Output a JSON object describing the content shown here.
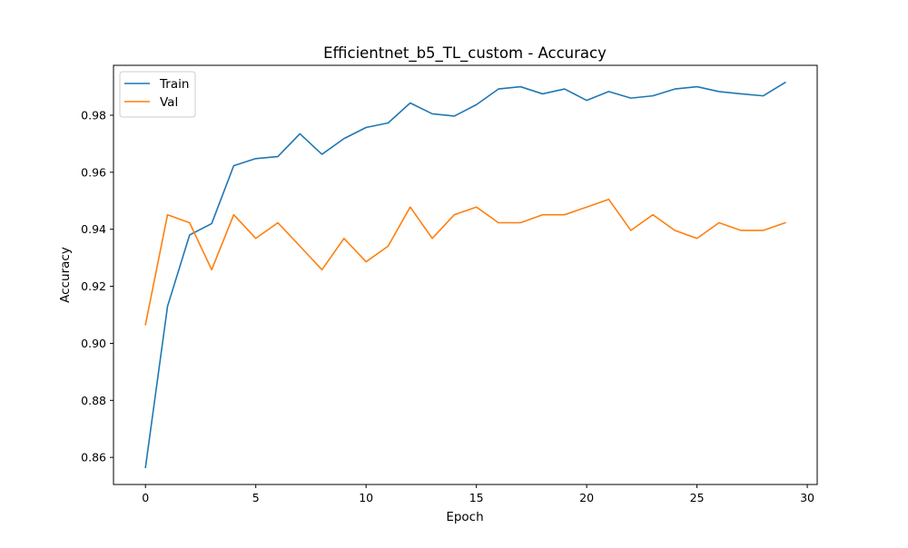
{
  "chart_data": {
    "type": "line",
    "title": "Efficientnet_b5_TL_custom - Accuracy",
    "xlabel": "Epoch",
    "ylabel": "Accuracy",
    "xlim": [
      -1.45,
      30.45
    ],
    "ylim": [
      0.8505,
      0.9975
    ],
    "xticks": [
      0,
      5,
      10,
      15,
      20,
      25,
      30
    ],
    "yticks": [
      0.86,
      0.88,
      0.9,
      0.92,
      0.94,
      0.96,
      0.98
    ],
    "ytick_labels": [
      "0.86",
      "0.88",
      "0.90",
      "0.92",
      "0.94",
      "0.96",
      "0.98"
    ],
    "grid": false,
    "legend_position": "upper-left",
    "x": [
      0,
      1,
      2,
      3,
      4,
      5,
      6,
      7,
      8,
      9,
      10,
      11,
      12,
      13,
      14,
      15,
      16,
      17,
      18,
      19,
      20,
      21,
      22,
      23,
      24,
      25,
      26,
      27,
      28,
      29
    ],
    "series": [
      {
        "name": "Train",
        "color": "#1f77b4",
        "values": [
          0.8565,
          0.913,
          0.938,
          0.942,
          0.9623,
          0.9648,
          0.9655,
          0.9735,
          0.9663,
          0.9718,
          0.9757,
          0.9773,
          0.9843,
          0.9805,
          0.9797,
          0.9837,
          0.9892,
          0.99,
          0.9875,
          0.9892,
          0.9852,
          0.9883,
          0.986,
          0.9868,
          0.9892,
          0.99,
          0.9883,
          0.9875,
          0.9868,
          0.9915
        ]
      },
      {
        "name": "Val",
        "color": "#ff7f0e",
        "values": [
          0.9066,
          0.9451,
          0.9423,
          0.9258,
          0.9451,
          0.9368,
          0.9423,
          0.9341,
          0.9258,
          0.9368,
          0.9286,
          0.9341,
          0.9478,
          0.9368,
          0.9451,
          0.9478,
          0.9423,
          0.9423,
          0.9451,
          0.9451,
          0.9478,
          0.9505,
          0.9396,
          0.9451,
          0.9396,
          0.9368,
          0.9423,
          0.9396,
          0.9396,
          0.9423
        ]
      }
    ]
  }
}
